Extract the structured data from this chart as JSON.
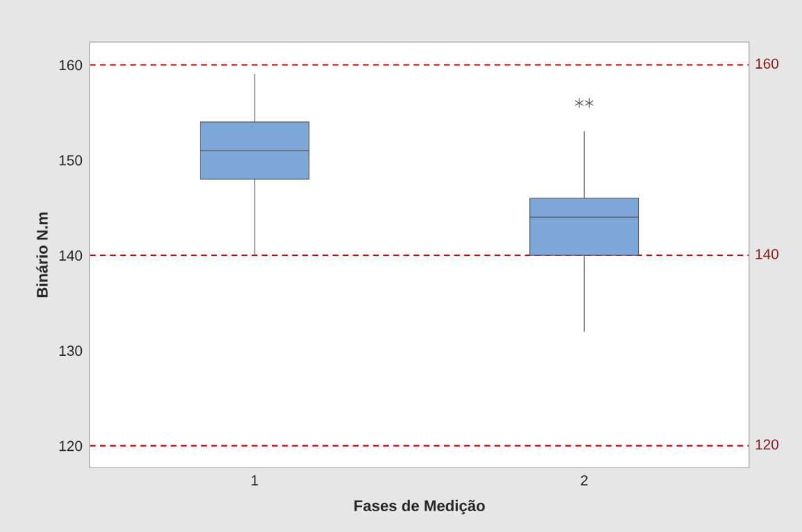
{
  "chart_data": {
    "type": "box",
    "xlabel": "Fases de Medição",
    "ylabel": "Binário N.m",
    "categories": [
      "1",
      "2"
    ],
    "boxes": [
      {
        "low": 140,
        "q1": 148,
        "median": 151,
        "q3": 154,
        "high": 159
      },
      {
        "low": 132,
        "q1": 140,
        "median": 144,
        "q3": 146,
        "high": 153,
        "outliers": [
          156,
          156
        ]
      }
    ],
    "color": "#7da7d9",
    "ylim": [
      117.7,
      162.4
    ],
    "yticks": [
      120,
      130,
      140,
      150,
      160
    ],
    "ref_lines": [
      {
        "axis": "y",
        "value": 120,
        "label": "120",
        "color": "#cc0000",
        "line_style": "dashed"
      },
      {
        "axis": "y",
        "value": 140,
        "label": "140",
        "color": "#cc0000",
        "line_style": "dashed"
      },
      {
        "axis": "y",
        "value": 160,
        "label": "160",
        "color": "#cc0000",
        "line_style": "dashed"
      }
    ],
    "grid": false,
    "legend": false
  }
}
